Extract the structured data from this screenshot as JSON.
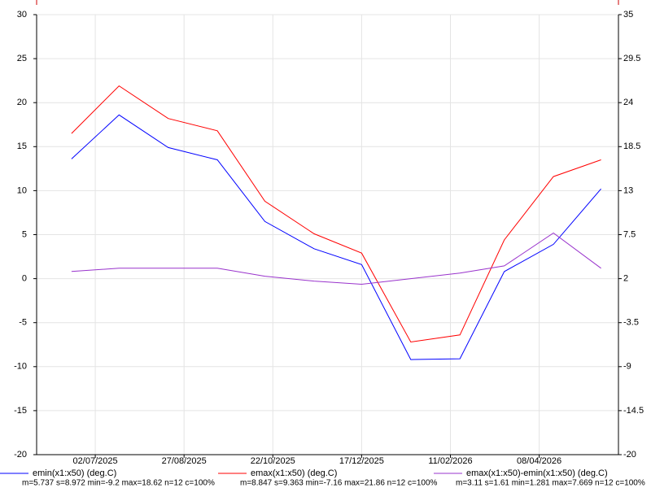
{
  "chart_data": {
    "type": "line",
    "x": [
      "17/06/2025",
      "17/07/2025",
      "17/08/2025",
      "17/09/2025",
      "17/10/2025",
      "17/11/2025",
      "17/12/2025",
      "17/01/2026",
      "17/02/2026",
      "17/03/2026",
      "17/04/2026",
      "17/05/2026"
    ],
    "xlim": [
      "26/05/2025",
      "28/05/2026"
    ],
    "xticks": [
      "02/07/2025",
      "27/08/2025",
      "22/10/2025",
      "17/12/2025",
      "11/02/2026",
      "08/04/2026"
    ],
    "ylim": [
      -20,
      30
    ],
    "yticks": [
      -20,
      -15,
      -10,
      -5,
      0,
      5,
      10,
      15,
      20,
      25,
      30
    ],
    "y2lim": [
      -20,
      35
    ],
    "y2ticks": [
      -20,
      -14.5,
      -9,
      -3.5,
      2,
      7.5,
      13,
      18.5,
      24,
      29.5,
      35
    ],
    "grid": true,
    "series": [
      {
        "name": "emin(x1:x50) (deg.C)",
        "color": "#0000ff",
        "stats": "m=5.737 s=8.972 min=-9.2 max=18.62 n=12 c=100%",
        "values": [
          13.6,
          18.6,
          14.9,
          13.5,
          6.5,
          3.4,
          1.6,
          -9.2,
          -9.1,
          0.8,
          3.9,
          10.2
        ]
      },
      {
        "name": "emax(x1:x50) (deg.C)",
        "color": "#ff0000",
        "stats": "m=8.847 s=9.363 min=-7.16 max=21.86 n=12 c=100%",
        "values": [
          16.5,
          21.9,
          18.2,
          16.8,
          8.8,
          5.1,
          2.9,
          -7.2,
          -6.4,
          4.4,
          11.6,
          13.5
        ]
      },
      {
        "name": "emax(x1:x50)-emin(x1:x50) (deg.C)",
        "color": "#9933cc",
        "axis": "y2",
        "stats": "m=3.11 s=1.61 min=1.281 max=7.669 n=12 c=100%",
        "values": [
          2.9,
          3.3,
          3.3,
          3.3,
          2.3,
          1.7,
          1.3,
          2.0,
          2.7,
          3.6,
          7.7,
          3.3
        ]
      }
    ]
  }
}
